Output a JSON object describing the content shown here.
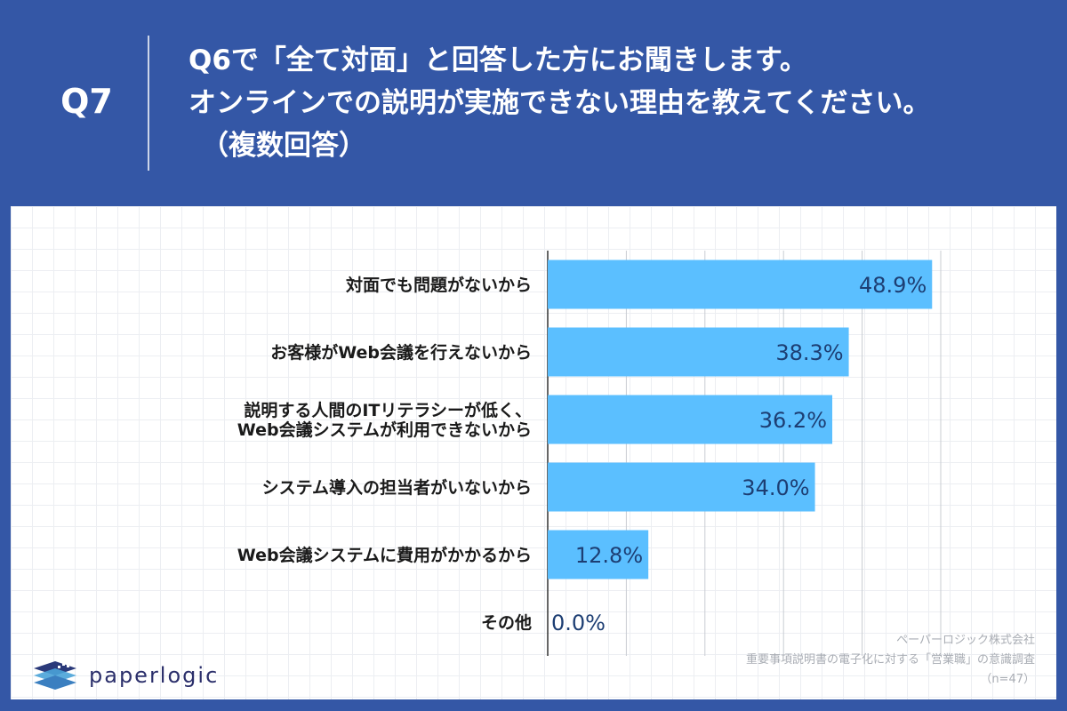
{
  "header": {
    "q_label": "Q7",
    "question_lines": [
      "Q6で「全て対面」と回答した方にお聞きします。",
      "オンラインでの説明が実施できない理由を教えてください。",
      "（複数回答）"
    ]
  },
  "logo": {
    "text": "paperlogic"
  },
  "source": {
    "lines": [
      "ペーパーロジック株式会社",
      "重要事項説明書の電子化に対する「営業職」の意識調査",
      "（n=47）"
    ]
  },
  "colors": {
    "background": "#3457a6",
    "bar": "#5bbfff",
    "value_text": "#1d3e73",
    "grid": "#c9ccd2"
  },
  "chart_data": {
    "type": "bar",
    "orientation": "horizontal",
    "categories": [
      [
        "対面でも問題がないから"
      ],
      [
        "お客様がWeb会議を行えないから"
      ],
      [
        "説明する人間のITリテラシーが低く、",
        "Web会議システムが利用できないから"
      ],
      [
        "システム導入の担当者がいないから"
      ],
      [
        "Web会議システムに費用がかかるから"
      ],
      [
        "その他"
      ]
    ],
    "values": [
      48.9,
      38.3,
      36.2,
      34.0,
      12.8,
      0.0
    ],
    "value_labels": [
      "48.9%",
      "38.3%",
      "36.2%",
      "34.0%",
      "12.8%",
      "0.0%"
    ],
    "xlim": [
      0,
      50
    ],
    "grid": true
  }
}
